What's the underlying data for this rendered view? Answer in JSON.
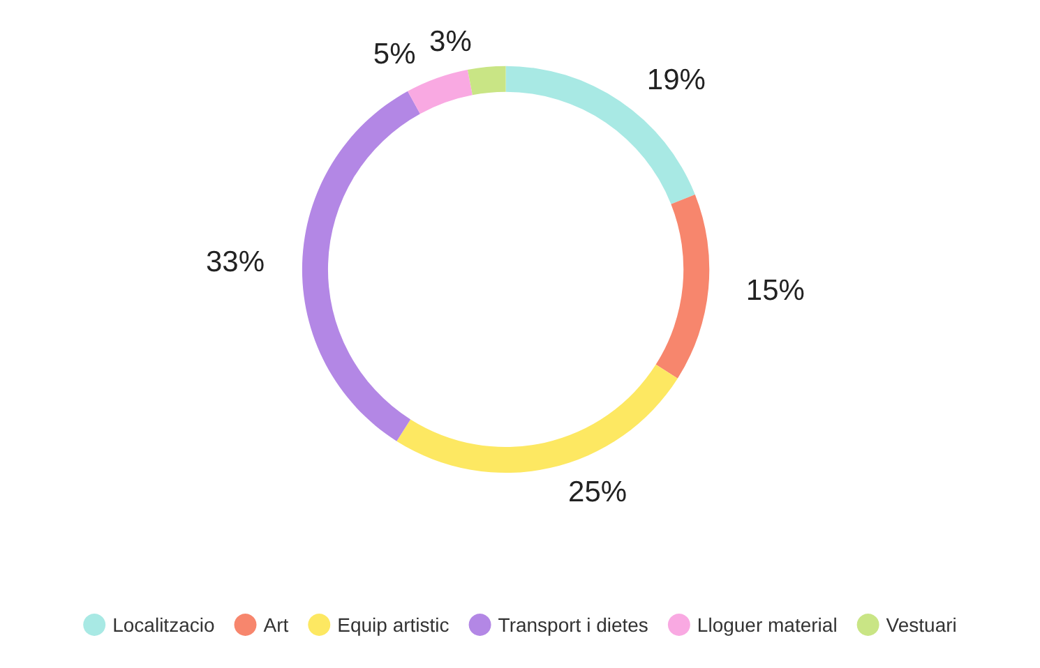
{
  "chart_data": {
    "type": "donut",
    "categories": [
      "Localitzacio",
      "Art",
      "Equip artistic",
      "Transport i dietes",
      "Lloguer material",
      "Vestuari"
    ],
    "values": [
      19,
      15,
      25,
      33,
      5,
      3
    ],
    "colors": [
      "#a8e9e4",
      "#f7866d",
      "#fde862",
      "#b387e5",
      "#f9a9e2",
      "#c9e585"
    ],
    "value_labels": [
      "19%",
      "15%",
      "25%",
      "33%",
      "5%",
      "3%"
    ],
    "legend": "bottom"
  }
}
